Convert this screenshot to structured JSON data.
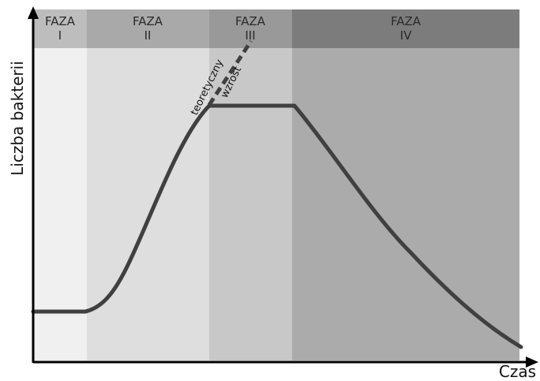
{
  "phases": [
    {
      "line1": "FAZA",
      "line2": "I",
      "body_color": "#f0f0f0",
      "header_color": "#bdbdbd"
    },
    {
      "line1": "FAZA",
      "line2": "II",
      "body_color": "#dedede",
      "header_color": "#a9a9a9"
    },
    {
      "line1": "FAZA",
      "line2": "III",
      "body_color": "#c8c8c8",
      "header_color": "#999999"
    },
    {
      "line1": "FAZA",
      "line2": "IV",
      "body_color": "#ababab",
      "header_color": "#7c7c7c"
    }
  ],
  "axes": {
    "y_label": "Liczba bakterii",
    "x_label": "Czas"
  },
  "annotation": {
    "line1": "teoretyczny",
    "line2": "wzrost"
  },
  "colors": {
    "curve": "#404040",
    "axis": "#000000"
  }
}
